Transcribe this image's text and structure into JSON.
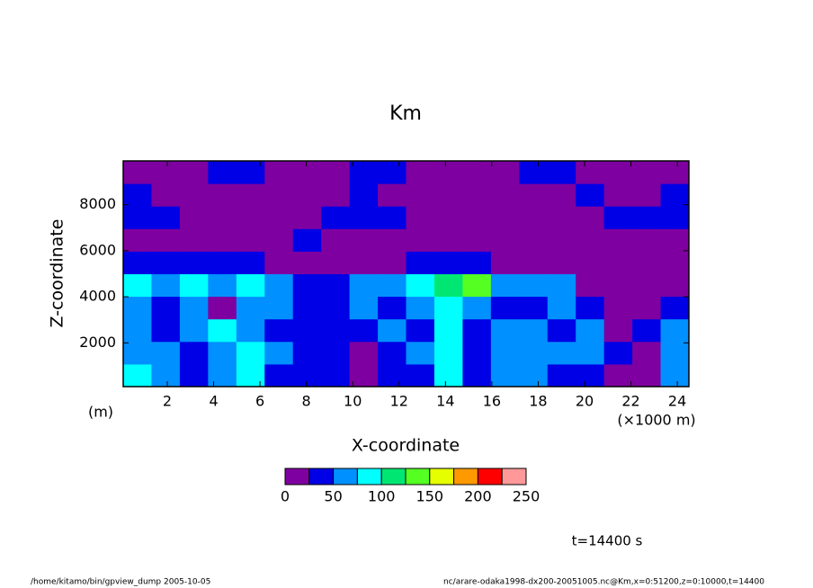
{
  "chart_data": {
    "type": "contour",
    "title": "Km",
    "x_label": "X-coordinate",
    "y_label": "Z-coordinate",
    "y_unit": "(m)",
    "x_unit": "(×1000 m)",
    "time_label": "t=14400 s",
    "footer_left": "/home/kitamo/bin/gpview_dump  2005-10-05",
    "footer_right": "nc/arare-odaka1998-dx200-20051005.nc@Km,x=0:51200,z=0:10000,t=14400",
    "xlim": [
      0.1,
      24.5
    ],
    "ylim": [
      100,
      9900
    ],
    "xticks": [
      2,
      4,
      6,
      8,
      10,
      12,
      14,
      16,
      18,
      20,
      22,
      24
    ],
    "yticks": [
      2000,
      4000,
      6000,
      8000
    ],
    "x": [
      0.71,
      1.93,
      3.15,
      4.37,
      5.59,
      6.81,
      8.03,
      9.25,
      10.47,
      11.69,
      12.91,
      14.13,
      15.35,
      16.57,
      17.79,
      19.01,
      20.23,
      21.45,
      22.67,
      23.89
    ],
    "y": [
      590,
      1570,
      2550,
      3530,
      4510,
      5490,
      6470,
      7450,
      8430,
      9410
    ],
    "z": [
      [
        90,
        60,
        40,
        60,
        90,
        40,
        40,
        40,
        10,
        40,
        40,
        90,
        40,
        60,
        60,
        40,
        40,
        10,
        10,
        60
      ],
      [
        60,
        60,
        40,
        60,
        90,
        60,
        40,
        40,
        10,
        40,
        60,
        90,
        40,
        60,
        60,
        60,
        60,
        40,
        10,
        60
      ],
      [
        60,
        40,
        60,
        90,
        60,
        40,
        40,
        40,
        40,
        60,
        40,
        90,
        40,
        60,
        60,
        40,
        60,
        10,
        40,
        60
      ],
      [
        60,
        40,
        60,
        10,
        60,
        60,
        40,
        40,
        60,
        40,
        60,
        90,
        60,
        40,
        40,
        60,
        40,
        10,
        10,
        40
      ],
      [
        90,
        60,
        90,
        60,
        90,
        60,
        40,
        40,
        60,
        60,
        90,
        115,
        140,
        60,
        60,
        60,
        10,
        10,
        10,
        10
      ],
      [
        40,
        40,
        40,
        40,
        40,
        10,
        10,
        10,
        10,
        10,
        40,
        40,
        40,
        10,
        10,
        10,
        10,
        10,
        10,
        10
      ],
      [
        10,
        10,
        10,
        10,
        10,
        10,
        40,
        10,
        10,
        10,
        10,
        10,
        10,
        10,
        10,
        10,
        10,
        10,
        10,
        10
      ],
      [
        40,
        40,
        10,
        10,
        10,
        10,
        10,
        40,
        40,
        40,
        10,
        10,
        10,
        10,
        10,
        10,
        10,
        40,
        40,
        40
      ],
      [
        40,
        10,
        10,
        10,
        10,
        10,
        10,
        10,
        40,
        10,
        10,
        10,
        10,
        10,
        10,
        10,
        40,
        10,
        10,
        40
      ],
      [
        10,
        10,
        10,
        40,
        40,
        10,
        10,
        10,
        40,
        40,
        10,
        10,
        10,
        10,
        40,
        40,
        10,
        10,
        10,
        10
      ]
    ],
    "levels": [
      0,
      25,
      50,
      75,
      100,
      125,
      150,
      175,
      200,
      225,
      250
    ],
    "colors": [
      "#7f00a0",
      "#0000e6",
      "#0090ff",
      "#00ffff",
      "#00e673",
      "#55ff22",
      "#e6ff00",
      "#ff9900",
      "#ff0000",
      "#ff9999"
    ],
    "colorbar_ticks": [
      0,
      50,
      100,
      150,
      200,
      250
    ]
  }
}
